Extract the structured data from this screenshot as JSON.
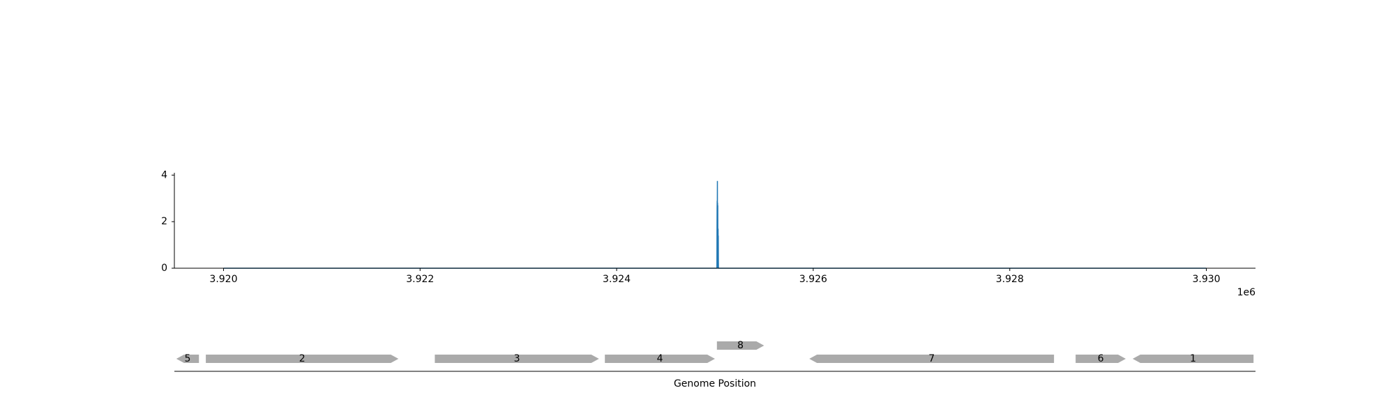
{
  "chart_data": [
    {
      "type": "area",
      "title": "",
      "xlabel": "",
      "ylabel": "",
      "xlim": [
        3919500,
        3930500
      ],
      "ylim": [
        0,
        4.1
      ],
      "x_ticks": [
        3920000,
        3922000,
        3924000,
        3926000,
        3928000,
        3930000
      ],
      "x_tick_labels": [
        "3.920",
        "3.922",
        "3.924",
        "3.926",
        "3.928",
        "3.930"
      ],
      "x_offset_label": "1e6",
      "y_ticks": [
        0,
        2,
        4
      ],
      "y_tick_labels": [
        "0",
        "2",
        "4"
      ],
      "grid": false,
      "color": "#1f77b4",
      "series": [
        {
          "x": [
            3920000,
            3925020,
            3925021,
            3925022,
            3925023,
            3925024,
            3925025,
            3925026,
            3925027,
            3925028,
            3925029,
            3925030,
            3925031,
            3925032,
            3925033,
            3925034,
            3925035,
            3925036,
            3930000
          ],
          "values": [
            0,
            0,
            1.6,
            2.6,
            2.9,
            2.4,
            3.75,
            1.0,
            2.8,
            2.1,
            2.7,
            0.6,
            1.2,
            1.7,
            0.5,
            1.4,
            0.3,
            0,
            0
          ]
        }
      ]
    },
    {
      "type": "gene_map",
      "xlabel": "Genome Position",
      "xlim": [
        3919500,
        3930500
      ],
      "color": "#aaaaaa",
      "genes": [
        {
          "label": "5",
          "start": 3919520,
          "end": 3919750,
          "strand": "-",
          "row": 0
        },
        {
          "label": "2",
          "start": 3919820,
          "end": 3921780,
          "strand": "+",
          "row": 0
        },
        {
          "label": "3",
          "start": 3922150,
          "end": 3923820,
          "strand": "+",
          "row": 0
        },
        {
          "label": "4",
          "start": 3923880,
          "end": 3925000,
          "strand": "+",
          "row": 0
        },
        {
          "label": "8",
          "start": 3925020,
          "end": 3925500,
          "strand": "+",
          "row": 1
        },
        {
          "label": "7",
          "start": 3925960,
          "end": 3928450,
          "strand": "-",
          "row": 0
        },
        {
          "label": "6",
          "start": 3928670,
          "end": 3929180,
          "strand": "+",
          "row": 0
        },
        {
          "label": "1",
          "start": 3929250,
          "end": 3930480,
          "strand": "-",
          "row": 0
        }
      ]
    }
  ]
}
